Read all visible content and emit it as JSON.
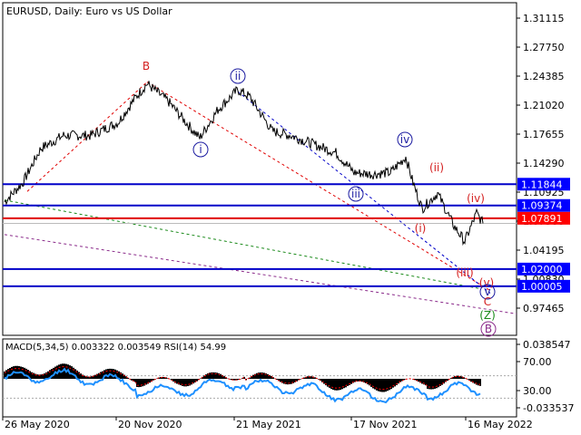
{
  "header": {
    "symbol_line": "EURUSD, Daily:  Euro vs US Dollar"
  },
  "indicator": {
    "label": "MACD(5,34,5) 0.003322 0.003549 RSI(14) 54.99"
  },
  "colors": {
    "background": "#ffffff",
    "price": "#000000",
    "blue_lines": "#0000c8",
    "red_line": "#e00000",
    "price_tag_blue": "#0000ff",
    "price_tag_red": "#ff0000",
    "wave_blue": "#1a1aa0",
    "wave_red": "#d42020",
    "wave_green": "#1a8a1a",
    "wave_purple": "#8a2a8a",
    "rsi": "#1e90ff",
    "macd_hist": "#000000",
    "macd_signal": "#ff0000"
  },
  "chart_data": {
    "type": "line",
    "series_name": "EURUSD Daily close",
    "price_axis_ticks": [
      "1.31115",
      "1.27750",
      "1.24385",
      "1.21020",
      "1.17655",
      "1.14290",
      "1.10925",
      "1.07560",
      "1.04195",
      "1.00830",
      "0.97465"
    ],
    "price_tags": [
      {
        "label": "1.11844",
        "value": 1.11844,
        "color": "blue"
      },
      {
        "label": "1.09374",
        "value": 1.09374,
        "color": "blue"
      },
      {
        "label": "1.07891",
        "value": 1.07891,
        "color": "red"
      },
      {
        "label": "1.02000",
        "value": 1.02,
        "color": "blue"
      },
      {
        "label": "1.00005",
        "value": 1.00005,
        "color": "blue"
      }
    ],
    "date_axis_ticks": [
      "26 May 2020",
      "20 Nov 2020",
      "21 May 2021",
      "17 Nov 2021",
      "16 May 2022"
    ],
    "key_points": [
      {
        "date": "26 May 2020",
        "price": 1.098
      },
      {
        "date": "Sep 2020",
        "price": 1.19
      },
      {
        "date": "Jan 2021",
        "price": 1.235,
        "label": "B"
      },
      {
        "date": "Mar 2021",
        "price": 1.17
      },
      {
        "date": "May 2021",
        "price": 1.225
      },
      {
        "date": "Jun 2021",
        "price": 1.22
      },
      {
        "date": "Aug 2021",
        "price": 1.175
      },
      {
        "date": "Oct 2021",
        "price": 1.155
      },
      {
        "date": "Nov 2021",
        "price": 1.13
      },
      {
        "date": "Jan 2022",
        "price": 1.14
      },
      {
        "date": "Mar 2022",
        "price": 1.095
      },
      {
        "date": "Apr 2022",
        "price": 1.085
      },
      {
        "date": "16 May 2022",
        "price": 1.044
      }
    ],
    "wave_labels": [
      {
        "text": "B",
        "color": "red"
      },
      {
        "text": "ii",
        "color": "blue",
        "circled": true
      },
      {
        "text": "i",
        "color": "blue",
        "circled": true
      },
      {
        "text": "iii",
        "color": "blue",
        "circled": true
      },
      {
        "text": "iv",
        "color": "blue",
        "circled": true
      },
      {
        "text": "(i)",
        "color": "red"
      },
      {
        "text": "(ii)",
        "color": "red"
      },
      {
        "text": "(iii)",
        "color": "red"
      },
      {
        "text": "(iv)",
        "color": "red"
      },
      {
        "text": "(v)",
        "color": "red"
      },
      {
        "text": "v",
        "color": "blue",
        "circled": true
      },
      {
        "text": "C",
        "color": "red"
      },
      {
        "text": "(Z)",
        "color": "green"
      },
      {
        "text": "B",
        "color": "purple",
        "circled": true
      }
    ],
    "indicator_axis_ticks": [
      "0.038547",
      "70.00",
      "30.00",
      "-0.033537"
    ]
  }
}
